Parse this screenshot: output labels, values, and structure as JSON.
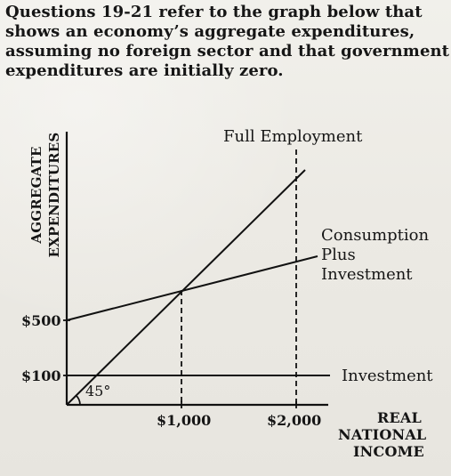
{
  "prompt": {
    "line1": "Questions 19-21 refer to the graph below that",
    "line2": "shows an economy’s aggregate expenditures,",
    "line3": "assuming no foreign sector and that government",
    "line4": "expenditures are initially zero."
  },
  "diagram": {
    "y_axis_title_line1": "AGGREGATE",
    "y_axis_title_line2": "EXPENDITURES",
    "full_employment_label": "Full Employment",
    "consumption_line1": "Consumption",
    "consumption_line2": "Plus",
    "consumption_line3": "Investment",
    "investment_label": "Investment",
    "angle_label": "45°",
    "y_tick_500": "$500",
    "y_tick_100": "$100",
    "x_tick_1000": "$1,000",
    "x_tick_2000": "$2,000",
    "x_axis_title_line1": "REAL",
    "x_axis_title_line2": "NATIONAL",
    "x_axis_title_line3": "INCOME"
  }
}
